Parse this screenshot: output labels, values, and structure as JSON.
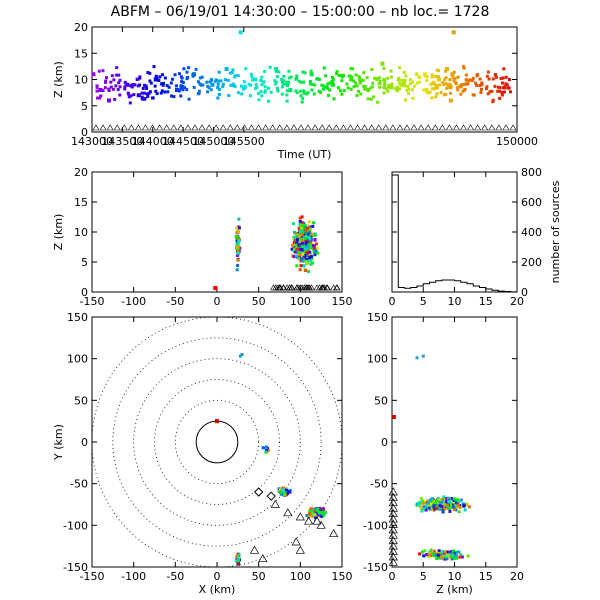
{
  "title": "ABFM – 06/19/01 14:30:00 – 15:00:00 – nb loc.=    1728",
  "chart_data": [
    {
      "id": "time-height",
      "type": "scatter",
      "xlabel": "Time (UT)",
      "ylabel": "Z (km)",
      "xlim": [
        143000,
        150000
      ],
      "ylim": [
        0,
        20
      ],
      "xticks": [
        143000,
        143500,
        144000,
        144500,
        145000,
        145500,
        150000
      ],
      "xtick_labels": [
        "143000",
        "143500",
        "144000",
        "144500",
        "145000",
        "145500",
        "150000"
      ],
      "yticks": [
        0,
        5,
        10,
        15,
        20
      ],
      "color_scale": "rainbow by time",
      "series": [
        {
          "x": 143010,
          "y": 11
        },
        {
          "x": 143060,
          "y": 8
        },
        {
          "x": 143120,
          "y": 6
        },
        {
          "x": 143250,
          "y": 9
        },
        {
          "x": 143330,
          "y": 7
        },
        {
          "x": 143450,
          "y": 10
        },
        {
          "x": 143600,
          "y": 8
        },
        {
          "x": 143720,
          "y": 11
        },
        {
          "x": 143850,
          "y": 9
        },
        {
          "x": 143950,
          "y": 12
        },
        {
          "x": 144050,
          "y": 19
        },
        {
          "x": 144150,
          "y": 10
        },
        {
          "x": 144300,
          "y": 12
        },
        {
          "x": 144400,
          "y": 8
        },
        {
          "x": 144550,
          "y": 11
        },
        {
          "x": 144700,
          "y": 9
        },
        {
          "x": 144830,
          "y": 10
        },
        {
          "x": 144950,
          "y": 8
        },
        {
          "x": 145050,
          "y": 13
        },
        {
          "x": 145200,
          "y": 9
        },
        {
          "x": 145350,
          "y": 11
        },
        {
          "x": 145450,
          "y": 10
        },
        {
          "x": 145550,
          "y": 12
        },
        {
          "x": 145700,
          "y": 9
        },
        {
          "x": 145800,
          "y": 6
        },
        {
          "x": 145900,
          "y": 11
        },
        {
          "x": 145980,
          "y": 19
        }
      ]
    },
    {
      "id": "x-height",
      "type": "scatter",
      "xlabel": "",
      "ylabel": "Z (km)",
      "xlim": [
        -150,
        150
      ],
      "ylim": [
        0,
        20
      ],
      "xticks": [
        -150,
        -100,
        -50,
        0,
        50,
        100,
        150
      ],
      "yticks": [
        0,
        5,
        10,
        15,
        20
      ]
    },
    {
      "id": "altitude-histogram",
      "type": "line",
      "xlabel": "",
      "ylabel": "number of sources",
      "xlim": [
        0,
        20
      ],
      "ylim": [
        0,
        800
      ],
      "xticks": [
        0,
        5,
        10,
        15,
        20
      ],
      "yticks": [
        0,
        200,
        400,
        600,
        800
      ],
      "x": [
        0,
        1,
        2,
        3,
        4,
        5,
        6,
        7,
        8,
        9,
        10,
        11,
        12,
        13,
        14,
        15,
        16,
        17,
        18,
        19,
        20
      ],
      "values": [
        780,
        30,
        25,
        30,
        40,
        55,
        65,
        75,
        80,
        80,
        75,
        65,
        55,
        40,
        30,
        20,
        12,
        6,
        3,
        1,
        0
      ]
    },
    {
      "id": "plan-view",
      "type": "scatter",
      "xlabel": "X (km)",
      "ylabel": "Y (km)",
      "xlim": [
        -150,
        150
      ],
      "ylim": [
        -150,
        150
      ],
      "xticks": [
        -150,
        -100,
        -50,
        0,
        50,
        100,
        150
      ],
      "yticks": [
        -150,
        -100,
        -50,
        0,
        50,
        100,
        150
      ],
      "range_rings_km": [
        25,
        50,
        75,
        100,
        125,
        150
      ]
    },
    {
      "id": "z-y-view",
      "type": "scatter",
      "xlabel": "Z (km)",
      "ylabel": "",
      "xlim": [
        0,
        20
      ],
      "ylim": [
        -150,
        150
      ],
      "xticks": [
        0,
        5,
        10,
        15,
        20
      ],
      "yticks": [
        -150,
        -100,
        -50,
        0,
        50,
        100,
        150
      ]
    }
  ]
}
